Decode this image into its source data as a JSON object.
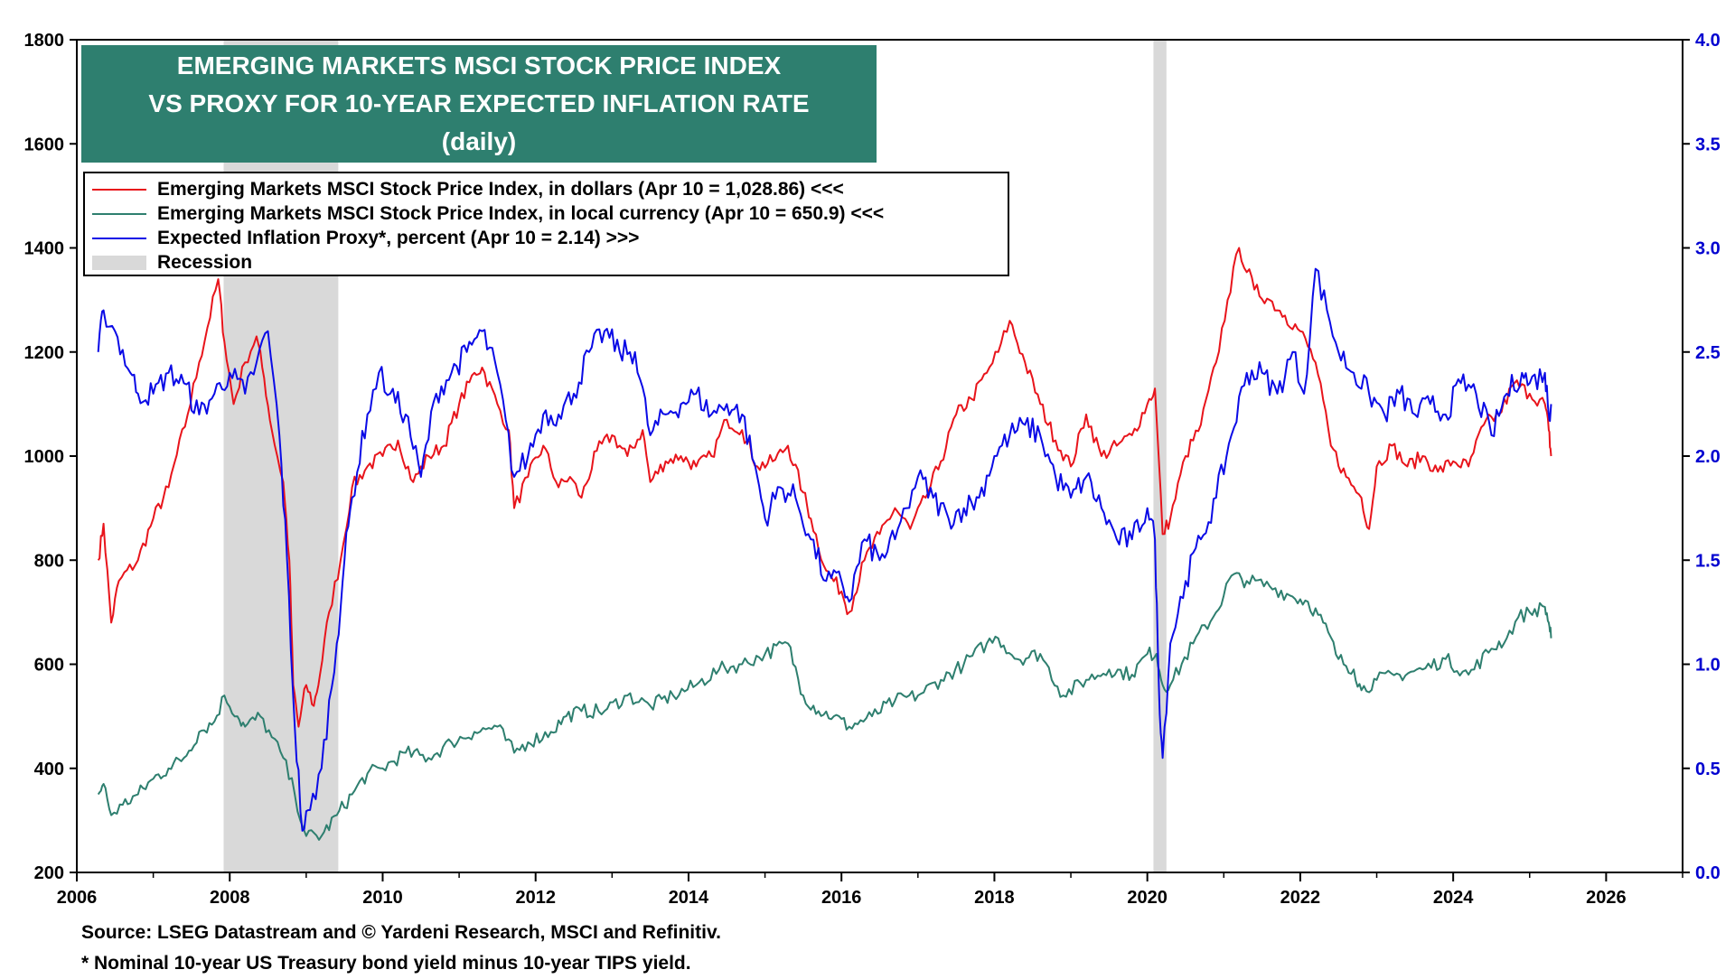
{
  "chart_data": {
    "type": "line",
    "title_lines": [
      "EMERGING MARKETS MSCI STOCK PRICE INDEX",
      "VS PROXY FOR 10-YEAR EXPECTED INFLATION RATE",
      "(daily)"
    ],
    "x_ticks": [
      "2006",
      "2008",
      "2010",
      "2012",
      "2014",
      "2016",
      "2018",
      "2020",
      "2022",
      "2024",
      "2026"
    ],
    "xlim": [
      2006,
      2027
    ],
    "y_left": {
      "ticks": [
        "200",
        "400",
        "600",
        "800",
        "1000",
        "1200",
        "1400",
        "1600",
        "1800"
      ],
      "lim": [
        200,
        1800
      ]
    },
    "y_right": {
      "ticks": [
        "0.0",
        "0.5",
        "1.0",
        "1.5",
        "2.0",
        "2.5",
        "3.0",
        "3.5",
        "4.0"
      ],
      "lim": [
        0,
        4
      ]
    },
    "legend": [
      {
        "label": "Emerging Markets MSCI Stock Price Index, in dollars (Apr 10 = 1,028.86) <<<",
        "color": "#e8141b"
      },
      {
        "label": "Emerging Markets MSCI Stock Price Index, in local currency (Apr 10 = 650.9) <<<",
        "color": "#2e7f6f"
      },
      {
        "label": "Expected Inflation Proxy*, percent (Apr 10 = 2.14) >>>",
        "color": "#0a0ae6"
      },
      {
        "label": "Recession",
        "color": "#d9d9d9"
      }
    ],
    "recessions": [
      [
        2007.92,
        2009.42
      ],
      [
        2020.08,
        2020.25
      ]
    ],
    "series": [
      {
        "name": "Emerging Markets MSCI Stock Price Index, in dollars (Apr 10 = 1,028.86) <<<",
        "axis": "left",
        "color": "#e8141b",
        "x": [
          2006.28,
          2006.35,
          2006.45,
          2006.55,
          2006.8,
          2007.0,
          2007.2,
          2007.45,
          2007.6,
          2007.85,
          2007.93,
          2008.05,
          2008.2,
          2008.35,
          2008.45,
          2008.55,
          2008.7,
          2008.78,
          2008.83,
          2008.9,
          2009.0,
          2009.1,
          2009.18,
          2009.3,
          2009.45,
          2009.6,
          2009.8,
          2010.0,
          2010.2,
          2010.4,
          2010.6,
          2010.8,
          2011.0,
          2011.2,
          2011.3,
          2011.5,
          2011.65,
          2011.72,
          2011.9,
          2012.1,
          2012.3,
          2012.45,
          2012.6,
          2012.8,
          2013.0,
          2013.2,
          2013.4,
          2013.5,
          2013.7,
          2013.9,
          2014.1,
          2014.3,
          2014.5,
          2014.7,
          2014.9,
          2015.1,
          2015.3,
          2015.5,
          2015.6,
          2015.8,
          2016.0,
          2016.1,
          2016.3,
          2016.5,
          2016.7,
          2016.9,
          2017.1,
          2017.3,
          2017.5,
          2017.7,
          2017.9,
          2018.05,
          2018.2,
          2018.4,
          2018.6,
          2018.8,
          2019.0,
          2019.2,
          2019.4,
          2019.6,
          2019.8,
          2020.0,
          2020.1,
          2020.2,
          2020.3,
          2020.5,
          2020.7,
          2020.9,
          2021.05,
          2021.2,
          2021.4,
          2021.6,
          2021.8,
          2022.0,
          2022.2,
          2022.4,
          2022.6,
          2022.8,
          2022.9,
          2023.0,
          2023.2,
          2023.4,
          2023.6,
          2023.8,
          2024.0,
          2024.2,
          2024.4,
          2024.6,
          2024.8,
          2025.0,
          2025.2,
          2025.25,
          2025.28
        ],
        "values": [
          800,
          870,
          680,
          760,
          800,
          880,
          940,
          1080,
          1180,
          1340,
          1220,
          1100,
          1180,
          1230,
          1150,
          1050,
          950,
          800,
          560,
          480,
          560,
          520,
          580,
          700,
          800,
          940,
          980,
          1000,
          1030,
          950,
          1000,
          1020,
          1100,
          1160,
          1170,
          1100,
          1050,
          900,
          960,
          1020,
          940,
          960,
          920,
          1010,
          1040,
          1000,
          1050,
          950,
          990,
          1000,
          980,
          1000,
          1070,
          1050,
          980,
          990,
          1020,
          930,
          880,
          780,
          740,
          700,
          800,
          850,
          900,
          860,
          920,
          990,
          1080,
          1110,
          1160,
          1200,
          1260,
          1180,
          1100,
          1030,
          980,
          1080,
          1000,
          1020,
          1040,
          1100,
          1130,
          850,
          880,
          1000,
          1060,
          1180,
          1300,
          1400,
          1320,
          1300,
          1270,
          1240,
          1180,
          1020,
          960,
          920,
          860,
          980,
          1020,
          980,
          1000,
          970,
          990,
          980,
          1060,
          1080,
          1140,
          1120,
          1100,
          1050,
          1000
        ]
      },
      {
        "name": "Emerging Markets MSCI Stock Price Index, in local currency (Apr 10 = 650.9) <<<",
        "axis": "left",
        "color": "#2e7f6f",
        "x": [
          2006.28,
          2006.35,
          2006.45,
          2006.6,
          2006.8,
          2007.0,
          2007.2,
          2007.4,
          2007.6,
          2007.8,
          2007.93,
          2008.1,
          2008.2,
          2008.4,
          2008.55,
          2008.7,
          2008.85,
          2009.0,
          2009.2,
          2009.4,
          2009.6,
          2009.8,
          2010.0,
          2010.3,
          2010.6,
          2010.9,
          2011.2,
          2011.5,
          2011.72,
          2011.9,
          2012.2,
          2012.4,
          2012.6,
          2012.9,
          2013.2,
          2013.5,
          2013.8,
          2014.1,
          2014.4,
          2014.7,
          2015.0,
          2015.3,
          2015.5,
          2015.7,
          2015.9,
          2016.1,
          2016.4,
          2016.7,
          2017.0,
          2017.3,
          2017.6,
          2017.9,
          2018.05,
          2018.3,
          2018.6,
          2018.9,
          2019.2,
          2019.5,
          2019.8,
          2020.0,
          2020.12,
          2020.2,
          2020.3,
          2020.6,
          2020.9,
          2021.1,
          2021.3,
          2021.6,
          2021.9,
          2022.1,
          2022.3,
          2022.5,
          2022.7,
          2022.8,
          2023.0,
          2023.3,
          2023.6,
          2023.9,
          2024.2,
          2024.5,
          2024.7,
          2024.85,
          2025.0,
          2025.2,
          2025.25,
          2025.28
        ],
        "values": [
          350,
          370,
          310,
          330,
          350,
          380,
          400,
          420,
          470,
          490,
          540,
          500,
          480,
          500,
          460,
          420,
          350,
          270,
          270,
          310,
          350,
          390,
          400,
          430,
          420,
          450,
          470,
          480,
          430,
          450,
          470,
          500,
          510,
          510,
          540,
          520,
          540,
          560,
          590,
          600,
          620,
          640,
          540,
          510,
          500,
          480,
          500,
          530,
          540,
          570,
          600,
          640,
          650,
          610,
          620,
          540,
          570,
          590,
          580,
          620,
          620,
          560,
          560,
          640,
          700,
          770,
          760,
          750,
          730,
          720,
          680,
          610,
          590,
          550,
          570,
          580,
          590,
          610,
          580,
          630,
          650,
          690,
          700,
          710,
          680,
          650
        ]
      },
      {
        "name": "Expected Inflation Proxy*, percent (Apr 10 = 2.14) >>>",
        "axis": "right",
        "color": "#0a0ae6",
        "x": [
          2006.28,
          2006.35,
          2006.5,
          2006.7,
          2006.8,
          2007.0,
          2007.2,
          2007.4,
          2007.6,
          2007.8,
          2008.0,
          2008.2,
          2008.35,
          2008.5,
          2008.65,
          2008.75,
          2008.85,
          2008.95,
          2009.05,
          2009.2,
          2009.4,
          2009.5,
          2009.6,
          2009.8,
          2009.95,
          2010.1,
          2010.3,
          2010.5,
          2010.7,
          2010.9,
          2011.1,
          2011.3,
          2011.5,
          2011.72,
          2011.9,
          2012.1,
          2012.3,
          2012.5,
          2012.7,
          2012.9,
          2013.1,
          2013.3,
          2013.5,
          2013.7,
          2013.9,
          2014.1,
          2014.3,
          2014.5,
          2014.7,
          2014.9,
          2015.0,
          2015.2,
          2015.4,
          2015.6,
          2015.8,
          2016.0,
          2016.1,
          2016.3,
          2016.5,
          2016.7,
          2016.85,
          2017.0,
          2017.2,
          2017.4,
          2017.6,
          2017.8,
          2018.0,
          2018.2,
          2018.4,
          2018.6,
          2018.8,
          2019.0,
          2019.2,
          2019.4,
          2019.6,
          2019.8,
          2020.0,
          2020.1,
          2020.15,
          2020.2,
          2020.3,
          2020.5,
          2020.7,
          2020.9,
          2021.1,
          2021.3,
          2021.5,
          2021.7,
          2021.9,
          2022.05,
          2022.2,
          2022.35,
          2022.5,
          2022.7,
          2022.9,
          2023.1,
          2023.3,
          2023.5,
          2023.7,
          2023.9,
          2024.1,
          2024.3,
          2024.5,
          2024.7,
          2024.9,
          2025.0,
          2025.2,
          2025.25,
          2025.28
        ],
        "values": [
          2.5,
          2.7,
          2.6,
          2.4,
          2.3,
          2.3,
          2.4,
          2.35,
          2.2,
          2.3,
          2.4,
          2.3,
          2.45,
          2.6,
          2.1,
          1.5,
          0.7,
          0.2,
          0.3,
          0.5,
          1.1,
          1.5,
          1.8,
          2.2,
          2.4,
          2.3,
          2.2,
          1.9,
          2.3,
          2.4,
          2.5,
          2.6,
          2.4,
          1.9,
          2.0,
          2.2,
          2.2,
          2.3,
          2.5,
          2.6,
          2.5,
          2.5,
          2.1,
          2.2,
          2.25,
          2.3,
          2.2,
          2.25,
          2.2,
          1.9,
          1.7,
          1.85,
          1.8,
          1.6,
          1.4,
          1.4,
          1.3,
          1.6,
          1.5,
          1.6,
          1.75,
          1.9,
          1.8,
          1.7,
          1.75,
          1.8,
          2.0,
          2.1,
          2.15,
          2.1,
          1.9,
          1.8,
          1.9,
          1.75,
          1.6,
          1.6,
          1.75,
          1.6,
          0.9,
          0.55,
          1.1,
          1.4,
          1.6,
          1.8,
          2.1,
          2.4,
          2.4,
          2.3,
          2.5,
          2.3,
          2.9,
          2.7,
          2.5,
          2.4,
          2.3,
          2.2,
          2.3,
          2.2,
          2.25,
          2.2,
          2.35,
          2.3,
          2.1,
          2.3,
          2.4,
          2.35,
          2.4,
          2.2,
          2.25
        ]
      }
    ],
    "source": "Source: LSEG Datastream and © Yardeni Research, MSCI and Refinitiv.",
    "footnote": "* Nominal 10-year US Treasury bond yield minus 10-year TIPS yield."
  }
}
